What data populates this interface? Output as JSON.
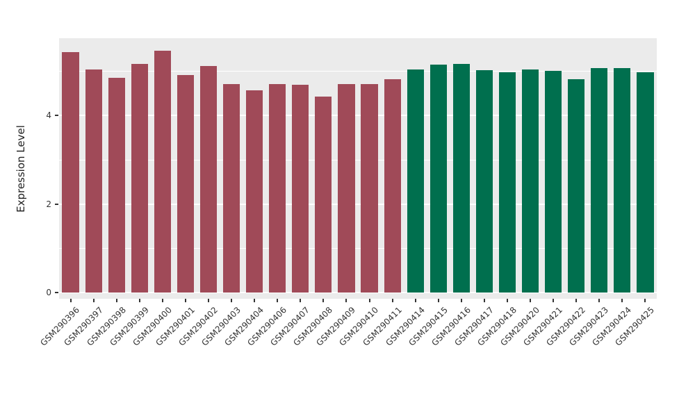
{
  "chart_data": {
    "type": "bar",
    "title": "",
    "xlabel": "",
    "ylabel": "Expression Level",
    "ylim": [
      0,
      5.75
    ],
    "yticks": [
      0,
      2,
      4
    ],
    "grid": {
      "major": [
        0,
        2,
        4
      ],
      "minor": [
        1,
        3,
        5
      ]
    },
    "panel_background": "#ebebeb",
    "grid_color": "#ffffff",
    "legend": "none",
    "categories": [
      "GSM290396",
      "GSM290397",
      "GSM290398",
      "GSM290399",
      "GSM290400",
      "GSM290401",
      "GSM290402",
      "GSM290403",
      "GSM290404",
      "GSM290406",
      "GSM290407",
      "GSM290408",
      "GSM290409",
      "GSM290410",
      "GSM290411",
      "GSM290414",
      "GSM290415",
      "GSM290416",
      "GSM290417",
      "GSM290418",
      "GSM290420",
      "GSM290421",
      "GSM290422",
      "GSM290423",
      "GSM290424",
      "GSM290425"
    ],
    "values": [
      5.43,
      5.04,
      4.85,
      5.17,
      5.47,
      4.91,
      5.12,
      4.72,
      4.57,
      4.71,
      4.69,
      4.43,
      4.72,
      4.71,
      4.83,
      5.04,
      5.15,
      5.17,
      5.02,
      4.98,
      5.04,
      5.01,
      4.83,
      5.07,
      5.07,
      4.98
    ],
    "group_colors": [
      "#a04a58",
      "#006f4e"
    ],
    "group_sizes": [
      15,
      11
    ]
  }
}
